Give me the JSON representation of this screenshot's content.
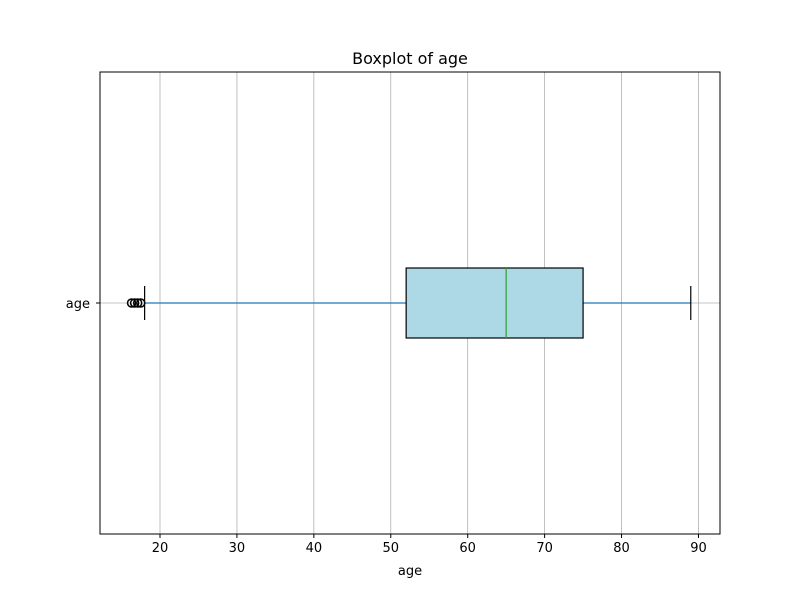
{
  "chart_data": {
    "type": "boxplot",
    "title": "Boxplot of age",
    "xlabel": "age",
    "ylabel": "",
    "orientation": "horizontal",
    "xlim": [
      12.2,
      92.8
    ],
    "xticks": [
      20,
      30,
      40,
      50,
      60,
      70,
      80,
      90
    ],
    "grid": true,
    "series": [
      {
        "name": "age",
        "whisker_low": 18,
        "q1": 52,
        "median": 65,
        "q3": 75,
        "whisker_high": 89,
        "outliers": [
          16.3,
          16.7,
          17.1,
          17.5
        ]
      }
    ],
    "colors": {
      "box_fill": "#add8e6",
      "box_edge": "#000000",
      "whisker": "#1f77b4",
      "median": "#2ca02c",
      "outlier": "#000000",
      "grid": "#b0b0b0",
      "caps": "#000000"
    }
  }
}
